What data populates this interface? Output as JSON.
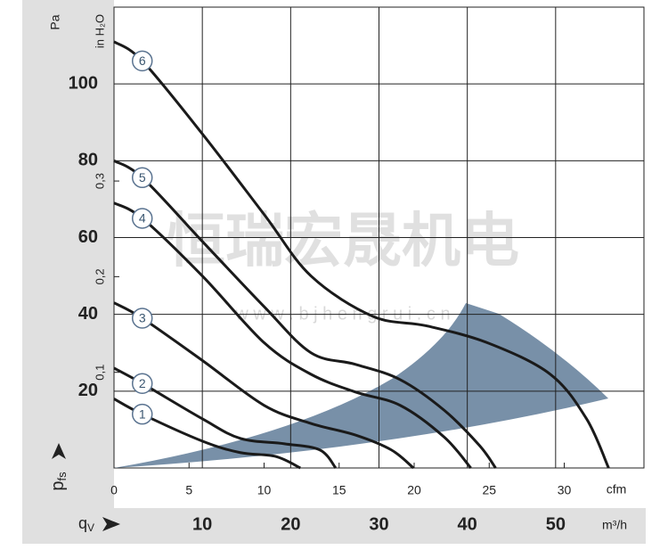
{
  "chart_data": {
    "type": "line",
    "y_label": "Pa",
    "y2_label": "in H₂O",
    "y_symbol": {
      "symbol": "p",
      "subscript": "fs"
    },
    "x_symbol": {
      "symbol": "q",
      "subscript": "V"
    },
    "x_unit": "m³/h",
    "x2_unit": "cfm",
    "watermark": "恒瑞宏晟机电",
    "watermark_url": "w w w . b j h e n g r u i . c n",
    "xlim": [
      0,
      60
    ],
    "xticks": [
      10,
      20,
      30,
      40,
      50
    ],
    "x2lim": [
      0,
      35.31
    ],
    "x2ticks": [
      0,
      5,
      10,
      15,
      20,
      25,
      30
    ],
    "ylim": [
      0,
      120
    ],
    "yticks": [
      20,
      40,
      60,
      80,
      100
    ],
    "y2lim": [
      0,
      0.4818
    ],
    "y2ticks": [
      {
        "value": 0.1,
        "label": "0,1"
      },
      {
        "value": 0.2,
        "label": "0,2"
      },
      {
        "value": 0.3,
        "label": "0,3"
      }
    ],
    "grid": true,
    "series": [
      {
        "name": "1",
        "color": "#1a1a1a",
        "x": [
          0,
          3.2,
          10,
          14.3,
          18.3,
          21.1
        ],
        "values": [
          18,
          14,
          7,
          4,
          3,
          0
        ]
      },
      {
        "name": "2",
        "color": "#1a1a1a",
        "x": [
          0,
          3.2,
          10,
          14.3,
          19.3,
          23.3,
          25.1
        ],
        "values": [
          26,
          22,
          12.8,
          7.7,
          6.3,
          4.7,
          0
        ]
      },
      {
        "name": "3",
        "color": "#1a1a1a",
        "x": [
          0,
          3.2,
          10,
          17,
          22.3,
          27.3,
          31.4,
          33.9
        ],
        "values": [
          43,
          39,
          28,
          16.3,
          11.6,
          8.6,
          4.7,
          0
        ]
      },
      {
        "name": "4",
        "color": "#1a1a1a",
        "x": [
          0,
          3.2,
          10,
          17,
          22.3,
          27.3,
          32.4,
          37.4,
          40.4
        ],
        "values": [
          69,
          65,
          50,
          32.6,
          24.4,
          19.8,
          16.3,
          8,
          0
        ]
      },
      {
        "name": "5",
        "color": "#1a1a1a",
        "x": [
          0,
          3.2,
          10,
          17,
          22.3,
          27.3,
          32.4,
          37.4,
          41.4,
          43.2
        ],
        "values": [
          80,
          75.6,
          59,
          42,
          30,
          27,
          23,
          15,
          5.8,
          0
        ]
      },
      {
        "name": "6",
        "color": "#1a1a1a",
        "x": [
          0,
          3.2,
          10,
          17,
          22.3,
          29.3,
          35.4,
          42.4,
          49.4,
          53.5,
          56
        ],
        "values": [
          111,
          106,
          87,
          66,
          50,
          39.5,
          37,
          32.5,
          24.4,
          12.8,
          0
        ]
      }
    ]
  }
}
